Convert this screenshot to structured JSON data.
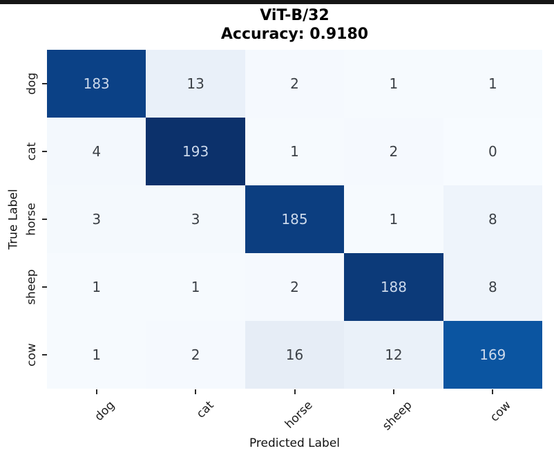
{
  "chart_data": {
    "type": "heatmap",
    "title": "ViT-B/32",
    "subtitle": "Accuracy: 0.9180",
    "accuracy": 0.918,
    "xlabel": "Predicted Label",
    "ylabel": "True Label",
    "x_categories": [
      "dog",
      "cat",
      "horse",
      "sheep",
      "cow"
    ],
    "y_categories": [
      "dog",
      "cat",
      "horse",
      "sheep",
      "cow"
    ],
    "matrix": [
      [
        183,
        13,
        2,
        1,
        1
      ],
      [
        4,
        193,
        1,
        2,
        0
      ],
      [
        3,
        3,
        185,
        1,
        8
      ],
      [
        1,
        1,
        2,
        188,
        8
      ],
      [
        1,
        2,
        16,
        12,
        169
      ]
    ],
    "colormap": "Blues",
    "value_range": [
      0,
      193
    ],
    "legend": "none",
    "grid": "off",
    "cell_colors": [
      [
        "#0b4186",
        "#e9f0f9",
        "#f5f9fe",
        "#f6fafe",
        "#f6fafe"
      ],
      [
        "#f3f8fd",
        "#0c316b",
        "#f6fafe",
        "#f5f9fe",
        "#f7fbff"
      ],
      [
        "#f4f9fd",
        "#f4f9fd",
        "#0c3e80",
        "#f6fafe",
        "#eef4fb"
      ],
      [
        "#f6fafe",
        "#f6fafe",
        "#f5f9fe",
        "#0c3a79",
        "#eef4fb"
      ],
      [
        "#f6fafe",
        "#f5f9fe",
        "#e6edf6",
        "#eaf1f9",
        "#0b55a1"
      ]
    ],
    "annot_colors": [
      [
        "#ccd9eb",
        "#3b4046",
        "#3b4046",
        "#3b4046",
        "#3b4046"
      ],
      [
        "#3b4046",
        "#ccd9eb",
        "#3b4046",
        "#3b4046",
        "#3b4046"
      ],
      [
        "#3b4046",
        "#3b4046",
        "#ccd9eb",
        "#3b4046",
        "#3b4046"
      ],
      [
        "#3b4046",
        "#3b4046",
        "#3b4046",
        "#ccd9eb",
        "#3b4046"
      ],
      [
        "#3b4046",
        "#3b4046",
        "#3b4046",
        "#3b4046",
        "#ccd9eb"
      ]
    ]
  },
  "colors": {
    "figure_background": "#ffffff",
    "top_border": "#151515",
    "title_text": "#000000",
    "tick_text": "#1c1c1c",
    "dark_cell_text": "#ccd9eb",
    "light_cell_text": "#3b4046",
    "tick_mark": "#2a2a2a"
  }
}
